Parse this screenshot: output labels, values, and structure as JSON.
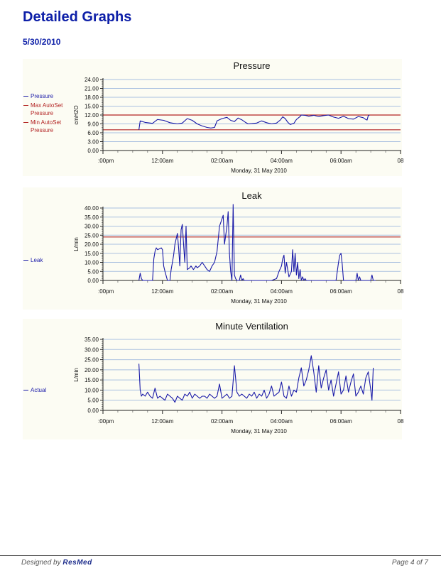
{
  "report": {
    "title": "Detailed Graphs",
    "date": "5/30/2010"
  },
  "footer": {
    "designed_by": "Designed by",
    "brand": "ResMed",
    "page": "Page 4 of 7"
  },
  "colors": {
    "series_blue": "#1a1aa8",
    "threshold_red": "#b22222",
    "gridline": "#a9c0e0",
    "panel_bg": "#fcfcf3",
    "title_blue": "#0d1fa8"
  },
  "chart_data": [
    {
      "id": "pressure",
      "type": "line",
      "title": "Pressure",
      "ylabel": "cmH2O",
      "xlabel": "Monday, 31 May 2010",
      "x_ticks": [
        ":00pm",
        "12:00am",
        "02:00am",
        "04:00am",
        "06:00am",
        "08"
      ],
      "y_ticks": [
        "0.00",
        "3.00",
        "6.00",
        "9.00",
        "12.00",
        "15.00",
        "18.00",
        "21.00",
        "24.00"
      ],
      "ylim": [
        0,
        24
      ],
      "xlim": [
        0,
        12
      ],
      "grid": true,
      "legend": {
        "position": "left",
        "entries": [
          {
            "label": "Pressure",
            "color": "#1a1aa8"
          },
          {
            "label": "Max AutoSet Pressure",
            "color": "#b22222"
          },
          {
            "label": "Min AutoSet Pressure",
            "color": "#b22222"
          }
        ]
      },
      "hlines": [
        {
          "name": "Max AutoSet Pressure",
          "value": 12,
          "color": "#b22222"
        },
        {
          "name": "Min AutoSet Pressure",
          "value": 7,
          "color": "#b22222"
        }
      ],
      "series": [
        {
          "name": "Pressure",
          "color": "#1a1aa8",
          "x": [
            1.45,
            1.5,
            1.7,
            2.0,
            2.2,
            2.45,
            2.7,
            3.0,
            3.2,
            3.4,
            3.6,
            3.8,
            4.0,
            4.2,
            4.35,
            4.5,
            4.6,
            4.8,
            5.0,
            5.15,
            5.3,
            5.45,
            5.6,
            5.75,
            5.85,
            6.0,
            6.2,
            6.4,
            6.6,
            6.8,
            7.0,
            7.15,
            7.25,
            7.35,
            7.45,
            7.55,
            7.7,
            7.8,
            7.95,
            8.0,
            8.15,
            8.3,
            8.5,
            8.7,
            8.9,
            9.1,
            9.3,
            9.5,
            9.7,
            9.9,
            10.1,
            10.3,
            10.5,
            10.6,
            10.65,
            10.7,
            10.75
          ],
          "y": [
            7,
            10,
            9.5,
            9.2,
            10.5,
            10.2,
            9.4,
            9.0,
            9.3,
            10.8,
            10.2,
            9.0,
            8.3,
            7.8,
            7.6,
            7.8,
            10.0,
            10.8,
            11.2,
            10.2,
            9.8,
            11.0,
            10.4,
            9.5,
            9.0,
            9.1,
            9.3,
            10.0,
            9.4,
            9.0,
            9.3,
            10.3,
            11.4,
            10.8,
            9.6,
            8.8,
            9.2,
            10.5,
            11.5,
            12.0,
            11.9,
            11.6,
            11.9,
            11.5,
            11.8,
            12.0,
            11.3,
            10.9,
            11.6,
            10.8,
            10.6,
            11.5,
            11.1,
            10.5,
            10.3,
            11.8,
            12.0
          ]
        }
      ]
    },
    {
      "id": "leak",
      "type": "line",
      "title": "Leak",
      "ylabel": "L/min",
      "xlabel": "Monday, 31 May 2010",
      "x_ticks": [
        ":00pm",
        "12:00am",
        "02:00am",
        "04:00am",
        "06:00am",
        "08"
      ],
      "y_ticks": [
        "0.00",
        "5.00",
        "10.00",
        "15.00",
        "20.00",
        "25.00",
        "30.00",
        "35.00",
        "40.00"
      ],
      "ylim": [
        0,
        40
      ],
      "xlim": [
        0,
        12
      ],
      "grid": true,
      "legend": {
        "position": "left",
        "entries": [
          {
            "label": "Leak",
            "color": "#1a1aa8"
          }
        ]
      },
      "hlines": [
        {
          "value": 24,
          "color": "#b22222"
        }
      ],
      "series": [
        {
          "name": "Leak",
          "color": "#1a1aa8",
          "x": [
            1.45,
            1.5,
            1.55,
            1.6,
            1.9,
            2.0,
            2.05,
            2.1,
            2.15,
            2.2,
            2.35,
            2.4,
            2.45,
            2.5,
            2.6,
            2.7,
            2.75,
            2.8,
            2.85,
            2.9,
            3.0,
            3.05,
            3.1,
            3.15,
            3.2,
            3.25,
            3.3,
            3.35,
            3.4,
            3.5,
            3.55,
            3.6,
            3.65,
            3.7,
            3.75,
            3.8,
            3.9,
            4.0,
            4.1,
            4.2,
            4.3,
            4.4,
            4.5,
            4.6,
            4.7,
            4.8,
            4.85,
            4.9,
            5.0,
            5.05,
            5.1,
            5.15,
            5.2,
            5.25,
            5.3,
            5.35,
            5.4,
            5.45,
            5.5,
            5.55,
            5.6,
            5.65,
            5.7,
            5.75,
            5.8,
            5.9,
            6.0,
            6.2,
            6.4,
            6.6,
            6.8,
            7.0,
            7.1,
            7.2,
            7.25,
            7.3,
            7.35,
            7.4,
            7.5,
            7.6,
            7.65,
            7.7,
            7.75,
            7.8,
            7.85,
            7.9,
            7.95,
            8.0,
            8.05,
            8.1,
            8.15,
            8.2,
            8.25,
            8.3,
            8.4,
            8.6,
            8.8,
            9.0,
            9.2,
            9.4,
            9.5,
            9.55,
            9.6,
            9.65,
            9.7,
            9.8,
            10.0,
            10.1,
            10.2,
            10.25,
            10.3,
            10.35,
            10.4,
            10.6,
            10.8,
            10.85,
            10.9,
            11.0
          ],
          "y": [
            0,
            4,
            1,
            0,
            0,
            0,
            12,
            16,
            18,
            17,
            18,
            17,
            8,
            5,
            0,
            0,
            6,
            10,
            14,
            20,
            26,
            18,
            8,
            28,
            31,
            20,
            10,
            30,
            6,
            7,
            8,
            7,
            6,
            7,
            8,
            7,
            8,
            10,
            8,
            6,
            5,
            8,
            10,
            16,
            30,
            34,
            36,
            20,
            30,
            38,
            15,
            5,
            0,
            42,
            3,
            1,
            0,
            0,
            0,
            3,
            0,
            1,
            0,
            0,
            0,
            0,
            0,
            0,
            0,
            0,
            0,
            1,
            5,
            8,
            12,
            14,
            4,
            10,
            2,
            5,
            17,
            5,
            15,
            3,
            10,
            1,
            6,
            0,
            2,
            0,
            1,
            0,
            0,
            0,
            0,
            0,
            0,
            0,
            0,
            0,
            10,
            14,
            15,
            9,
            0,
            0,
            0,
            0,
            0,
            4,
            0,
            2,
            0,
            0,
            0,
            3,
            0,
            0
          ]
        }
      ]
    },
    {
      "id": "minute-ventilation",
      "type": "line",
      "title": "Minute Ventilation",
      "ylabel": "L/min",
      "xlabel": "Monday, 31 May 2010",
      "x_ticks": [
        ":00pm",
        "12:00am",
        "02:00am",
        "04:00am",
        "06:00am",
        "08"
      ],
      "y_ticks": [
        "0.00",
        "5.00",
        "10.00",
        "15.00",
        "20.00",
        "25.00",
        "30.00",
        "35.00"
      ],
      "ylim": [
        0,
        35
      ],
      "xlim": [
        0,
        12
      ],
      "grid": true,
      "legend": {
        "position": "left",
        "entries": [
          {
            "label": "Actual",
            "color": "#1a1aa8"
          }
        ]
      },
      "hlines": [],
      "series": [
        {
          "name": "Actual",
          "color": "#1a1aa8",
          "x": [
            1.45,
            1.5,
            1.55,
            1.6,
            1.7,
            1.8,
            1.9,
            2.0,
            2.1,
            2.2,
            2.3,
            2.4,
            2.5,
            2.6,
            2.7,
            2.8,
            2.9,
            3.0,
            3.1,
            3.2,
            3.3,
            3.4,
            3.5,
            3.6,
            3.7,
            3.8,
            3.9,
            4.0,
            4.1,
            4.2,
            4.3,
            4.4,
            4.5,
            4.6,
            4.7,
            4.8,
            4.9,
            5.0,
            5.1,
            5.2,
            5.3,
            5.4,
            5.5,
            5.6,
            5.7,
            5.8,
            5.9,
            6.0,
            6.1,
            6.2,
            6.3,
            6.4,
            6.5,
            6.6,
            6.7,
            6.8,
            6.9,
            7.0,
            7.1,
            7.2,
            7.3,
            7.4,
            7.5,
            7.6,
            7.7,
            7.8,
            7.9,
            8.0,
            8.1,
            8.2,
            8.3,
            8.4,
            8.5,
            8.6,
            8.7,
            8.8,
            8.9,
            9.0,
            9.1,
            9.2,
            9.3,
            9.4,
            9.5,
            9.6,
            9.7,
            9.8,
            9.9,
            10.0,
            10.1,
            10.2,
            10.3,
            10.4,
            10.5,
            10.6,
            10.7,
            10.8,
            10.85,
            10.9
          ],
          "y": [
            23,
            10,
            7,
            8,
            7,
            9,
            7,
            6,
            11,
            6,
            7,
            6,
            5,
            8,
            7,
            6,
            4,
            7,
            6,
            5,
            8,
            7,
            9,
            6,
            8,
            7,
            6,
            7,
            7,
            6,
            8,
            7,
            6,
            7,
            13,
            6,
            7,
            8,
            6,
            7,
            22,
            9,
            7,
            8,
            7,
            6,
            8,
            7,
            9,
            6,
            8,
            7,
            10,
            6,
            8,
            12,
            7,
            8,
            9,
            14,
            7,
            6,
            12,
            7,
            10,
            9,
            16,
            21,
            12,
            15,
            20,
            27,
            19,
            9,
            22,
            11,
            16,
            20,
            10,
            15,
            7,
            13,
            19,
            8,
            10,
            17,
            9,
            14,
            18,
            7,
            9,
            12,
            8,
            16,
            19,
            10,
            5,
            21
          ]
        }
      ]
    }
  ]
}
